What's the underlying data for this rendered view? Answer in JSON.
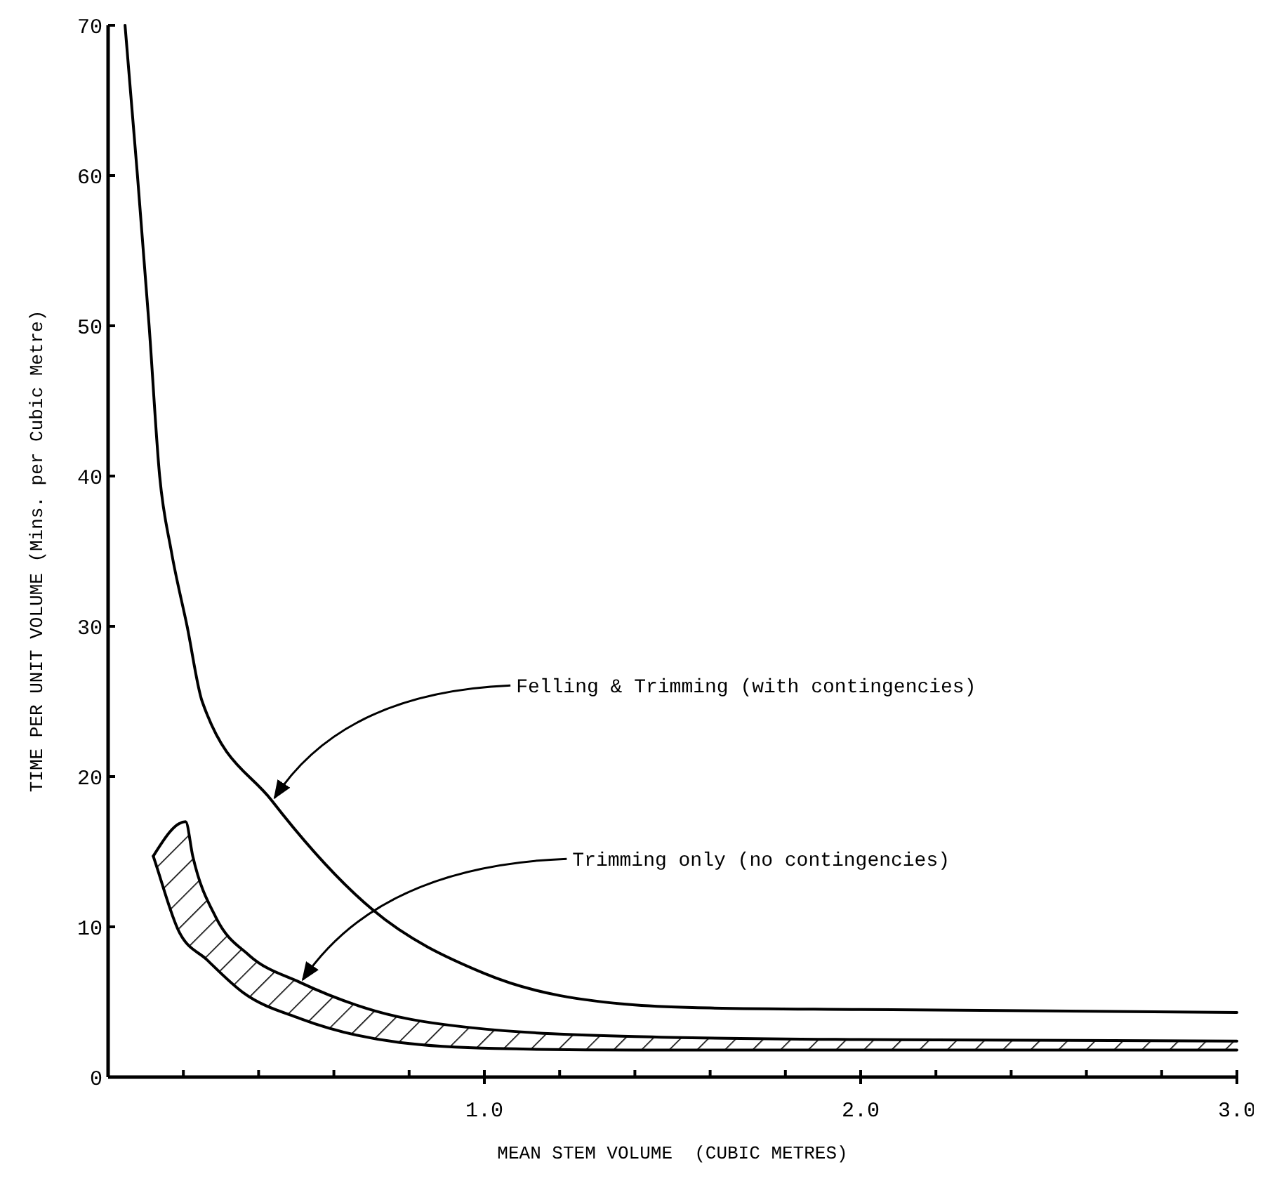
{
  "chart_data": {
    "type": "line",
    "xlabel": "MEAN STEM VOLUME  (CUBIC METRES)",
    "ylabel": "TIME PER UNIT VOLUME (Mins. per Cubic Metre)",
    "xlim": [
      0,
      3.0
    ],
    "ylim": [
      0,
      70
    ],
    "xticks": [
      {
        "value": 0.2,
        "label": null
      },
      {
        "value": 0.4,
        "label": null
      },
      {
        "value": 0.6,
        "label": null
      },
      {
        "value": 0.8,
        "label": null
      },
      {
        "value": 1.0,
        "label": "1.0"
      },
      {
        "value": 1.2,
        "label": null
      },
      {
        "value": 1.4,
        "label": null
      },
      {
        "value": 1.6,
        "label": null
      },
      {
        "value": 1.8,
        "label": null
      },
      {
        "value": 2.0,
        "label": "2.0"
      },
      {
        "value": 2.2,
        "label": null
      },
      {
        "value": 2.4,
        "label": null
      },
      {
        "value": 2.6,
        "label": null
      },
      {
        "value": 2.8,
        "label": null
      },
      {
        "value": 3.0,
        "label": "3.0"
      }
    ],
    "yticks": [
      0,
      10,
      20,
      30,
      40,
      50,
      60,
      70
    ],
    "marker": "none",
    "line_style": "solid",
    "series": [
      {
        "color": "#000000",
        "x": [
          0.045,
          0.078,
          0.109,
          0.137,
          0.168,
          0.21,
          0.25,
          0.435,
          0.7,
          1.0,
          1.4,
          1.6,
          2.0,
          3.0
        ],
        "values": [
          70,
          60,
          50,
          40,
          35,
          30,
          25,
          18.4,
          11.2,
          6.9,
          4.8,
          4.6,
          4.5,
          4.3
        ]
      },
      {
        "color": "#000000",
        "x": [
          0.12,
          0.206,
          0.225,
          0.287,
          0.375,
          0.51,
          0.71,
          0.96,
          1.4,
          2.0,
          3.0
        ],
        "values": [
          14.7,
          17,
          14.7,
          10.6,
          8.1,
          6.3,
          4.4,
          3.3,
          2.7,
          2.5,
          2.4
        ]
      },
      {
        "color": "#000000",
        "x": [
          0.12,
          0.124,
          0.188,
          0.263,
          0.36,
          0.51,
          0.775,
          1.03,
          1.4,
          2.0,
          3.0
        ],
        "values": [
          14.7,
          14.4,
          9.7,
          7.8,
          5.6,
          3.9,
          2.3,
          1.9,
          1.8,
          1.8,
          1.8
        ]
      }
    ],
    "annotations": [
      {
        "text": "Felling & Trimming (with contingencies)",
        "x": 0.435,
        "y": 18.4
      },
      {
        "text": "Trimming only (no contingencies)",
        "x": 0.51,
        "y": 6.3
      }
    ]
  }
}
